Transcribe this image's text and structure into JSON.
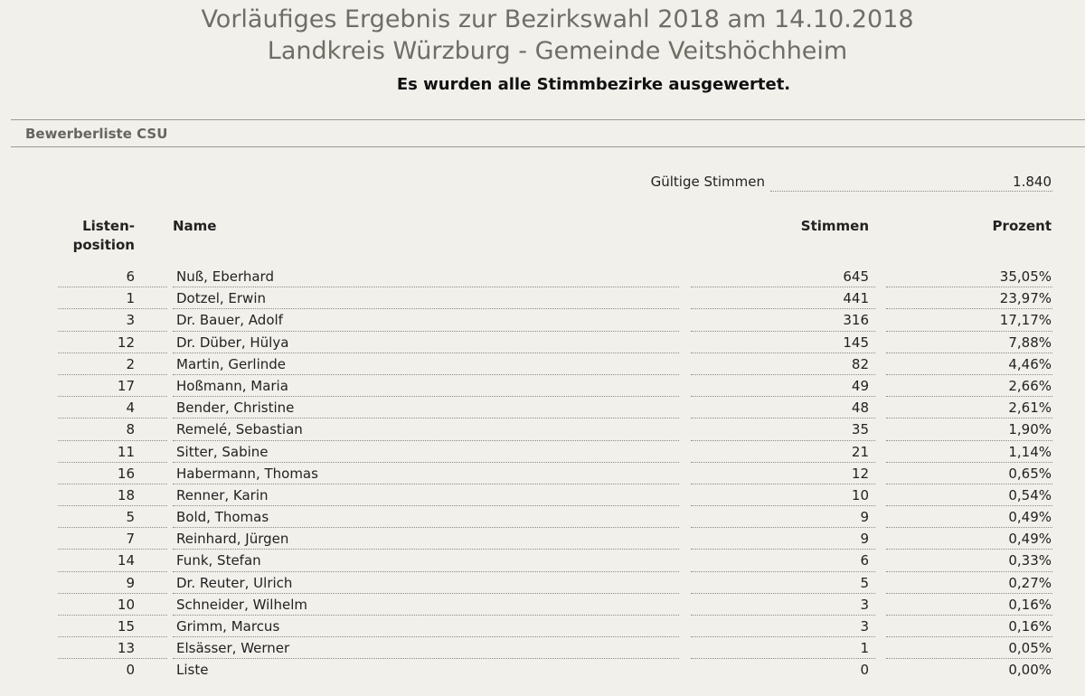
{
  "header": {
    "title": "Vorläufiges Ergebnis zur Bezirkswahl 2018 am 14.10.2018",
    "subtitle": "Landkreis Würzburg - Gemeinde Veitshöchheim",
    "status": "Es wurden alle Stimmbezirke ausgewertet."
  },
  "section": {
    "title": "Bewerberliste CSU"
  },
  "summary": {
    "valid_label": "Gültige Stimmen",
    "valid_value": "1.840"
  },
  "table": {
    "headers": {
      "position_line1": "Listen-",
      "position_line2": "position",
      "name": "Name",
      "votes": "Stimmen",
      "percent": "Prozent"
    },
    "rows": [
      {
        "pos": "6",
        "name": "Nuß, Eberhard",
        "votes": "645",
        "pct": "35,05%"
      },
      {
        "pos": "1",
        "name": "Dotzel, Erwin",
        "votes": "441",
        "pct": "23,97%"
      },
      {
        "pos": "3",
        "name": "Dr. Bauer, Adolf",
        "votes": "316",
        "pct": "17,17%"
      },
      {
        "pos": "12",
        "name": "Dr. Düber, Hülya",
        "votes": "145",
        "pct": "7,88%"
      },
      {
        "pos": "2",
        "name": "Martin, Gerlinde",
        "votes": "82",
        "pct": "4,46%"
      },
      {
        "pos": "17",
        "name": "Hoßmann, Maria",
        "votes": "49",
        "pct": "2,66%"
      },
      {
        "pos": "4",
        "name": "Bender, Christine",
        "votes": "48",
        "pct": "2,61%"
      },
      {
        "pos": "8",
        "name": "Remelé, Sebastian",
        "votes": "35",
        "pct": "1,90%"
      },
      {
        "pos": "11",
        "name": "Sitter, Sabine",
        "votes": "21",
        "pct": "1,14%"
      },
      {
        "pos": "16",
        "name": "Habermann, Thomas",
        "votes": "12",
        "pct": "0,65%"
      },
      {
        "pos": "18",
        "name": "Renner, Karin",
        "votes": "10",
        "pct": "0,54%"
      },
      {
        "pos": "5",
        "name": "Bold, Thomas",
        "votes": "9",
        "pct": "0,49%"
      },
      {
        "pos": "7",
        "name": "Reinhard, Jürgen",
        "votes": "9",
        "pct": "0,49%"
      },
      {
        "pos": "14",
        "name": "Funk, Stefan",
        "votes": "6",
        "pct": "0,33%"
      },
      {
        "pos": "9",
        "name": "Dr. Reuter, Ulrich",
        "votes": "5",
        "pct": "0,27%"
      },
      {
        "pos": "10",
        "name": "Schneider, Wilhelm",
        "votes": "3",
        "pct": "0,16%"
      },
      {
        "pos": "15",
        "name": "Grimm, Marcus",
        "votes": "3",
        "pct": "0,16%"
      },
      {
        "pos": "13",
        "name": "Elsässer, Werner",
        "votes": "1",
        "pct": "0,05%"
      },
      {
        "pos": "0",
        "name": "Liste",
        "votes": "0",
        "pct": "0,00%"
      }
    ]
  }
}
